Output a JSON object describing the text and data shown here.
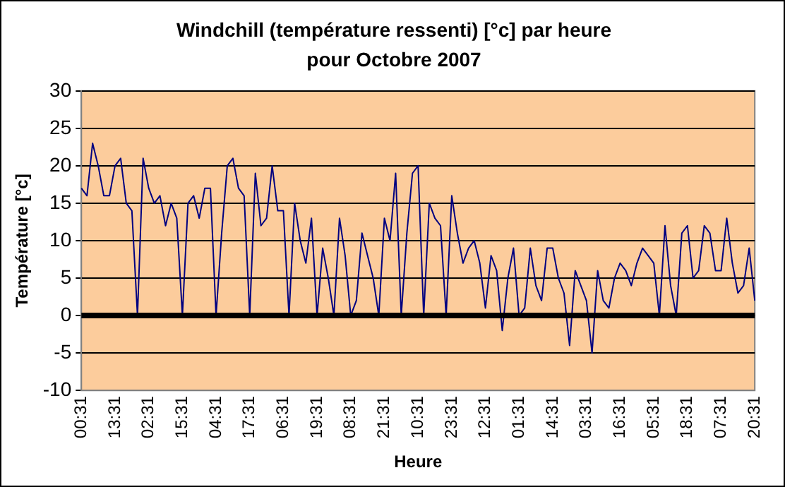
{
  "chart_data": {
    "type": "line",
    "title": "Windchill (température ressenti) [°c] par heure pour Octobre 2007",
    "xlabel": "Heure",
    "ylabel": "Température [°c]",
    "categories": [
      "00:31",
      null,
      null,
      null,
      null,
      null,
      "13:31",
      null,
      null,
      null,
      null,
      null,
      "02:31",
      null,
      null,
      null,
      null,
      null,
      "15:31",
      null,
      null,
      null,
      null,
      null,
      "04:31",
      null,
      null,
      null,
      null,
      null,
      "17:31",
      null,
      null,
      null,
      null,
      null,
      "06:31",
      null,
      null,
      null,
      null,
      null,
      "19:31",
      null,
      null,
      null,
      null,
      null,
      "08:31",
      null,
      null,
      null,
      null,
      null,
      "21:31",
      null,
      null,
      null,
      null,
      null,
      "10:31",
      null,
      null,
      null,
      null,
      null,
      "23:31",
      null,
      null,
      null,
      null,
      null,
      "12:31",
      null,
      null,
      null,
      null,
      null,
      "01:31",
      null,
      null,
      null,
      null,
      null,
      "14:31",
      null,
      null,
      null,
      null,
      null,
      "03:31",
      null,
      null,
      null,
      null,
      null,
      "16:31",
      null,
      null,
      null,
      null,
      null,
      "05:31",
      null,
      null,
      null,
      null,
      null,
      "18:31",
      null,
      null,
      null,
      null,
      null,
      "07:31",
      null,
      null,
      null,
      null,
      null,
      "20:31"
    ],
    "series": [
      {
        "color": "#000080",
        "values": [
          17,
          16,
          23,
          20,
          16,
          16,
          20,
          21,
          15,
          14,
          0,
          21,
          17,
          15,
          16,
          12,
          15,
          13,
          0,
          15,
          16,
          13,
          17,
          17,
          0,
          11,
          20,
          21,
          17,
          16,
          0,
          19,
          12,
          13,
          20,
          14,
          14,
          0,
          15,
          10,
          7,
          13,
          0,
          9,
          5,
          0,
          13,
          8,
          0,
          2,
          11,
          8,
          5,
          0,
          13,
          10,
          19,
          0,
          11,
          19,
          20,
          0,
          15,
          13,
          12,
          0,
          16,
          11,
          7,
          9,
          10,
          7,
          1,
          8,
          6,
          -2,
          5,
          9,
          0,
          1,
          9,
          4,
          2,
          9,
          9,
          5,
          3,
          -4,
          6,
          4,
          2,
          -5,
          6,
          2,
          1,
          5,
          7,
          6,
          4,
          7,
          9,
          8,
          7,
          0,
          12,
          4,
          0,
          11,
          12,
          5,
          6,
          12,
          11,
          6,
          6,
          13,
          7,
          3,
          4,
          9,
          2
        ]
      }
    ],
    "ylim": [
      -10,
      30
    ],
    "yticks": [
      -10,
      -5,
      0,
      5,
      10,
      15,
      20,
      25,
      30
    ],
    "grid": "y",
    "legend": false,
    "marker": "none",
    "line_style": "solid",
    "ref_lines": [
      {
        "axis": "y",
        "value": 0,
        "color": "#000000"
      }
    ]
  }
}
